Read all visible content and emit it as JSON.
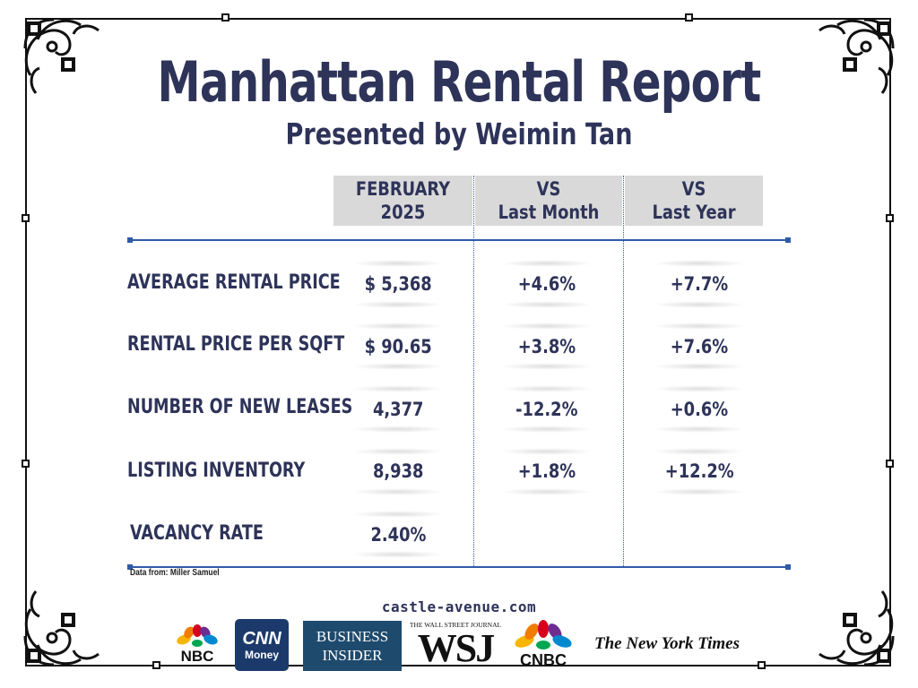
{
  "title": "Manhattan Rental Report",
  "subtitle": "Presented by Weimin Tan",
  "columns": {
    "period_line1": "FEBRUARY",
    "period_line2": "2025",
    "vs_month_line1": "VS",
    "vs_month_line2": "Last Month",
    "vs_year_line1": "VS",
    "vs_year_line2": "Last Year"
  },
  "rows": [
    {
      "label": "AVERAGE RENTAL PRICE",
      "value": "$ 5,368",
      "vs_month": "+4.6%",
      "vs_year": "+7.7%"
    },
    {
      "label": "RENTAL PRICE PER SQFT",
      "value": "$ 90.65",
      "vs_month": "+3.8%",
      "vs_year": "+7.6%"
    },
    {
      "label": "NUMBER OF NEW LEASES",
      "value": "4,377",
      "vs_month": "-12.2%",
      "vs_year": "+0.6%"
    },
    {
      "label": "LISTING INVENTORY",
      "value": "8,938",
      "vs_month": "+1.8%",
      "vs_year": "+12.2%"
    },
    {
      "label": "VACANCY RATE",
      "value": "2.40%",
      "vs_month": "",
      "vs_year": ""
    }
  ],
  "source": "Data from: Miller Samuel",
  "website": "castle-avenue.com",
  "logos": {
    "nbc": "NBC",
    "cnn_top": "CNN",
    "cnn_bottom": "Money",
    "bi_top": "BUSINESS",
    "bi_bottom": "INSIDER",
    "wsj_top": "THE WALL STREET JOURNAL",
    "wsj": "WSJ",
    "cnbc": "CNBC",
    "nyt": "The New York Times"
  },
  "colors": {
    "navy": "#2e3359",
    "header_bg": "#d9d9d9",
    "rule_blue": "#2f5aa8",
    "cnn_red": "#cc0000",
    "cnn_blue": "#1b3a6b",
    "bi_blue": "#1e4a6d"
  },
  "icons": [
    "nbc-peacock-icon",
    "cnbc-peacock-icon",
    "corner-ornament-icon"
  ]
}
